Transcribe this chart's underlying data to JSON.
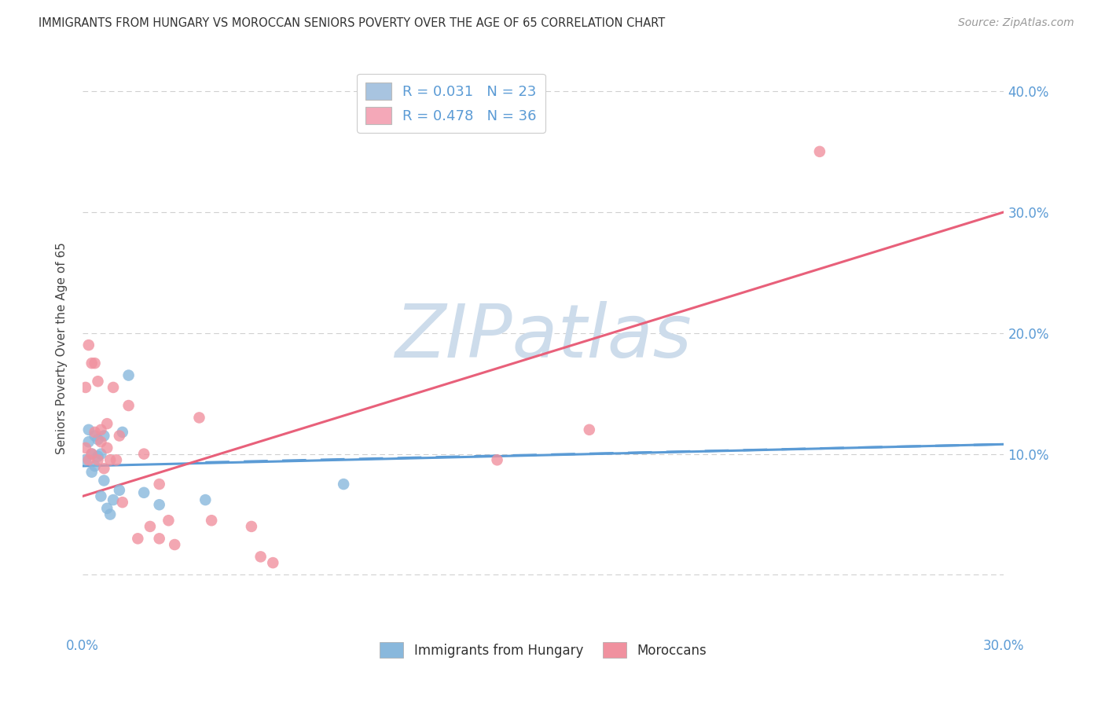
{
  "title": "IMMIGRANTS FROM HUNGARY VS MOROCCAN SENIORS POVERTY OVER THE AGE OF 65 CORRELATION CHART",
  "source": "Source: ZipAtlas.com",
  "ylabel": "Seniors Poverty Over the Age of 65",
  "legend_entries": [
    {
      "label": "R = 0.031   N = 23",
      "color": "#a8c4e0"
    },
    {
      "label": "R = 0.478   N = 36",
      "color": "#f4a8b8"
    }
  ],
  "legend_labels_bottom": [
    "Immigrants from Hungary",
    "Moroccans"
  ],
  "xlim": [
    0.0,
    0.3
  ],
  "ylim": [
    -0.05,
    0.425
  ],
  "yticks": [
    0.0,
    0.1,
    0.2,
    0.3,
    0.4
  ],
  "ytick_labels": [
    "",
    "10.0%",
    "20.0%",
    "30.0%",
    "40.0%"
  ],
  "xticks": [
    0.0,
    0.05,
    0.1,
    0.15,
    0.2,
    0.25,
    0.3
  ],
  "xtick_labels": [
    "0.0%",
    "",
    "",
    "",
    "",
    "",
    "30.0%"
  ],
  "grid_color": "#d0d0d0",
  "watermark_text": "ZIPatlas",
  "watermark_color": "#cddceb",
  "bg_color": "#ffffff",
  "title_color": "#333333",
  "axis_color": "#5b9bd5",
  "hungary_points_x": [
    0.001,
    0.002,
    0.002,
    0.003,
    0.003,
    0.004,
    0.004,
    0.005,
    0.005,
    0.006,
    0.006,
    0.007,
    0.007,
    0.008,
    0.009,
    0.01,
    0.012,
    0.013,
    0.015,
    0.02,
    0.025,
    0.04,
    0.085
  ],
  "hungary_points_y": [
    0.095,
    0.11,
    0.12,
    0.1,
    0.085,
    0.09,
    0.115,
    0.098,
    0.112,
    0.1,
    0.065,
    0.115,
    0.078,
    0.055,
    0.05,
    0.062,
    0.07,
    0.118,
    0.165,
    0.068,
    0.058,
    0.062,
    0.075
  ],
  "morocco_points_x": [
    0.001,
    0.001,
    0.002,
    0.002,
    0.003,
    0.003,
    0.004,
    0.004,
    0.005,
    0.005,
    0.006,
    0.006,
    0.007,
    0.008,
    0.008,
    0.009,
    0.01,
    0.011,
    0.012,
    0.013,
    0.015,
    0.018,
    0.02,
    0.022,
    0.025,
    0.025,
    0.028,
    0.03,
    0.038,
    0.042,
    0.055,
    0.058,
    0.062,
    0.135,
    0.165,
    0.24
  ],
  "morocco_points_y": [
    0.105,
    0.155,
    0.095,
    0.19,
    0.1,
    0.175,
    0.118,
    0.175,
    0.095,
    0.16,
    0.11,
    0.12,
    0.088,
    0.105,
    0.125,
    0.095,
    0.155,
    0.095,
    0.115,
    0.06,
    0.14,
    0.03,
    0.1,
    0.04,
    0.075,
    0.03,
    0.045,
    0.025,
    0.13,
    0.045,
    0.04,
    0.015,
    0.01,
    0.095,
    0.12,
    0.35
  ],
  "hungary_line_x": [
    0.0,
    0.3
  ],
  "hungary_line_y": [
    0.09,
    0.108
  ],
  "hungary_line_color": "#5b9bd5",
  "morocco_line_x": [
    0.0,
    0.3
  ],
  "morocco_line_y": [
    0.065,
    0.3
  ],
  "morocco_line_color": "#e8607a",
  "point_color_hungary": "#89b8dc",
  "point_color_morocco": "#f0919f"
}
